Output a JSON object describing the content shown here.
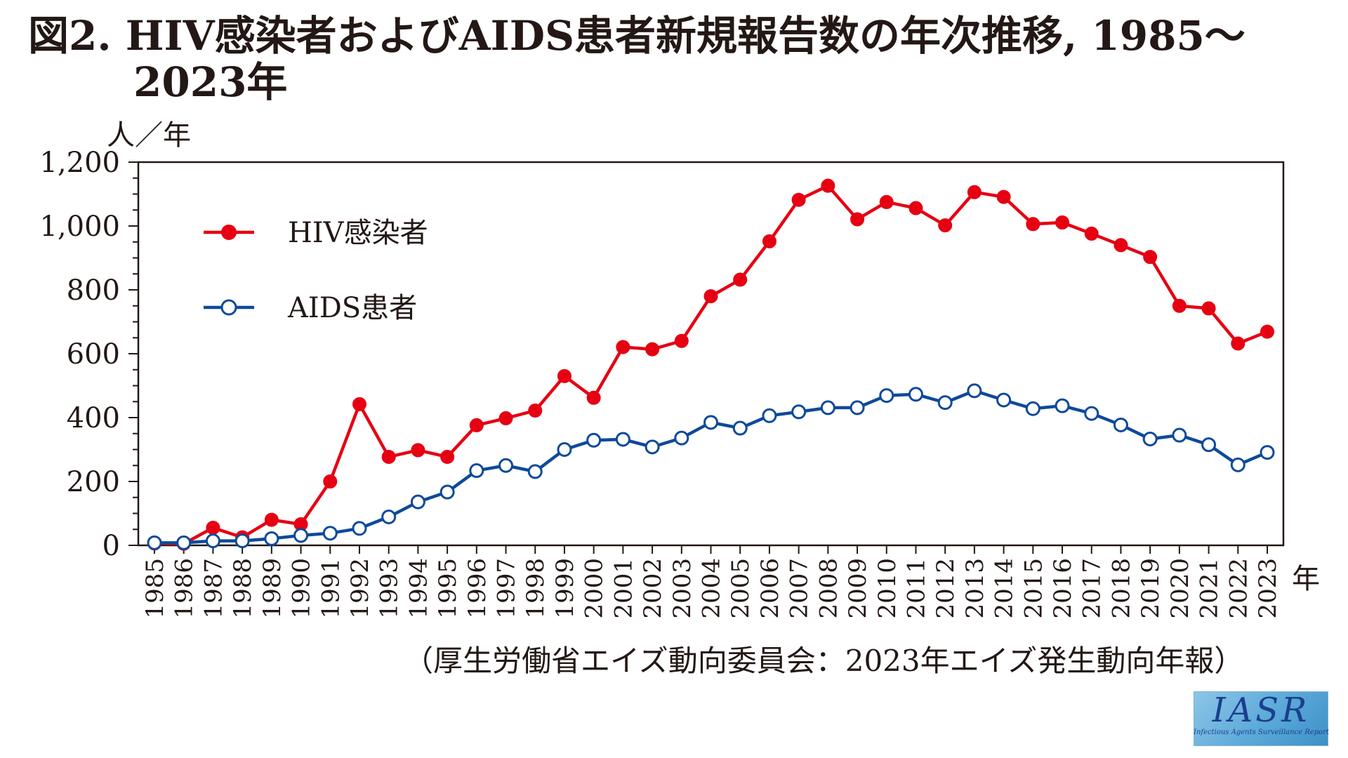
{
  "title": {
    "line1": "図2. HIV感染者およびAIDS患者新規報告数の年次推移, 1985～",
    "line2": "2023年"
  },
  "source": "（厚生労働省エイズ動向委員会：2023年エイズ発生動向年報）",
  "logo": {
    "text": "IASR",
    "subtitle": "Infectious Agents Surveillance Report"
  },
  "chart_data": {
    "type": "line",
    "y_unit": "人／年",
    "x_unit": "年",
    "ylim": [
      0,
      1200
    ],
    "yticks": [
      0,
      200,
      400,
      600,
      800,
      1000,
      1200
    ],
    "ytick_labels": [
      "0",
      "200",
      "400",
      "600",
      "800",
      "1,000",
      "1,200"
    ],
    "grid": false,
    "legend_position": "top-left",
    "x": [
      "1985",
      "1986",
      "1987",
      "1988",
      "1989",
      "1990",
      "1991",
      "1992",
      "1993",
      "1994",
      "1995",
      "1996",
      "1997",
      "1998",
      "1999",
      "2000",
      "2001",
      "2002",
      "2003",
      "2004",
      "2005",
      "2006",
      "2007",
      "2008",
      "2009",
      "2010",
      "2011",
      "2012",
      "2013",
      "2014",
      "2015",
      "2016",
      "2017",
      "2018",
      "2019",
      "2020",
      "2021",
      "2022",
      "2023"
    ],
    "series": [
      {
        "name": "HIV感染者",
        "color": "#e60012",
        "marker": "filled-circle",
        "values": [
          6,
          5,
          55,
          25,
          80,
          66,
          200,
          442,
          277,
          298,
          277,
          376,
          398,
          422,
          530,
          462,
          621,
          614,
          640,
          780,
          832,
          952,
          1082,
          1126,
          1021,
          1075,
          1056,
          1002,
          1106,
          1091,
          1006,
          1011,
          976,
          940,
          903,
          750,
          742,
          632,
          669
        ]
      },
      {
        "name": "AIDS患者",
        "color": "#0e4a9a",
        "marker": "open-circle",
        "values": [
          8,
          8,
          14,
          14,
          21,
          31,
          38,
          53,
          89,
          136,
          167,
          234,
          250,
          231,
          300,
          329,
          332,
          308,
          336,
          385,
          367,
          406,
          418,
          431,
          431,
          469,
          473,
          447,
          484,
          455,
          428,
          437,
          413,
          377,
          333,
          345,
          315,
          252,
          291
        ]
      }
    ]
  }
}
